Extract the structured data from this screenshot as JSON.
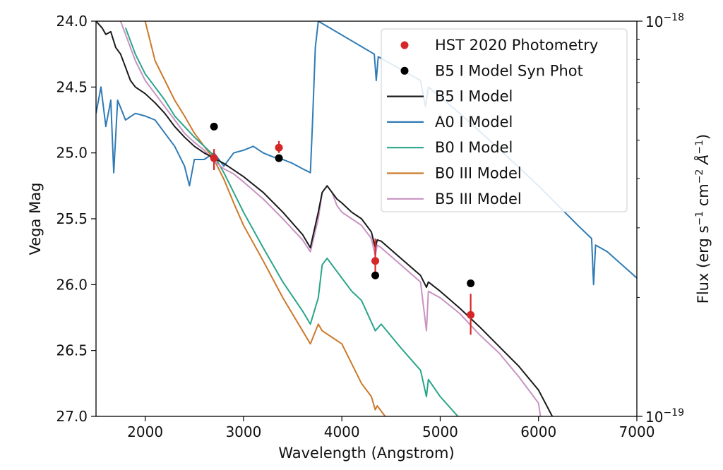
{
  "chart_data": {
    "type": "line",
    "xlabel": "Wavelength (Angstrom)",
    "ylabel": "Vega Mag",
    "y2label_html": "Flux (erg s⁻¹ cm⁻² Å⁻¹)",
    "y2label_parts": {
      "pre": "Flux (erg s",
      "s_exp": "−1",
      "mid": " cm",
      "cm_exp": "−2",
      "angstrom": " Å",
      "a_exp": "−1",
      "post": ")"
    },
    "xlim": [
      1500,
      7000
    ],
    "ylim": [
      27.0,
      24.0
    ],
    "y_inverted": true,
    "x_ticks": [
      2000,
      3000,
      4000,
      5000,
      6000,
      7000
    ],
    "x_tick_labels": [
      "2000",
      "3000",
      "4000",
      "5000",
      "6000",
      "7000"
    ],
    "y_ticks": [
      24.0,
      24.5,
      25.0,
      25.5,
      26.0,
      26.5,
      27.0
    ],
    "y_tick_labels": [
      "24.0",
      "24.5",
      "25.0",
      "25.5",
      "26.0",
      "26.5",
      "27.0"
    ],
    "y2_scale": "log",
    "y2_ticks": [
      {
        "mantissa": "10",
        "exponent": "−18",
        "value_mag": 24.0
      },
      {
        "mantissa": "10",
        "exponent": "−19",
        "value_mag": 27.0
      }
    ],
    "legend_position": "upper-right",
    "colors": {
      "hst": "#d62728",
      "synphot": "#000000",
      "b5i": "#1a1a1a",
      "a0i": "#2f7bb5",
      "b0i": "#2aa58a",
      "b0iii": "#cc7a2a",
      "b5iii": "#c993c2"
    },
    "series": [
      {
        "name": "B5 I Model",
        "kind": "line",
        "color_key": "b5i",
        "points": [
          [
            1500,
            24.0
          ],
          [
            1560,
            24.05
          ],
          [
            1600,
            24.1
          ],
          [
            1650,
            24.08
          ],
          [
            1700,
            24.2
          ],
          [
            1750,
            24.25
          ],
          [
            1800,
            24.35
          ],
          [
            1850,
            24.45
          ],
          [
            1900,
            24.5
          ],
          [
            2000,
            24.55
          ],
          [
            2100,
            24.62
          ],
          [
            2200,
            24.7
          ],
          [
            2300,
            24.8
          ],
          [
            2400,
            24.88
          ],
          [
            2500,
            24.95
          ],
          [
            2600,
            25.0
          ],
          [
            2700,
            25.04
          ],
          [
            2800,
            25.08
          ],
          [
            2900,
            25.13
          ],
          [
            3000,
            25.18
          ],
          [
            3200,
            25.3
          ],
          [
            3400,
            25.45
          ],
          [
            3600,
            25.62
          ],
          [
            3680,
            25.72
          ],
          [
            3700,
            25.65
          ],
          [
            3760,
            25.45
          ],
          [
            3800,
            25.3
          ],
          [
            3850,
            25.25
          ],
          [
            3900,
            25.3
          ],
          [
            3950,
            25.35
          ],
          [
            4000,
            25.38
          ],
          [
            4100,
            25.45
          ],
          [
            4200,
            25.5
          ],
          [
            4300,
            25.6
          ],
          [
            4340,
            25.72
          ],
          [
            4360,
            25.66
          ],
          [
            4400,
            25.67
          ],
          [
            4600,
            25.8
          ],
          [
            4800,
            25.93
          ],
          [
            4860,
            26.02
          ],
          [
            4880,
            25.98
          ],
          [
            5000,
            26.05
          ],
          [
            5200,
            26.18
          ],
          [
            5400,
            26.32
          ],
          [
            5600,
            26.47
          ],
          [
            5800,
            26.62
          ],
          [
            6000,
            26.8
          ],
          [
            6140,
            27.0
          ]
        ]
      },
      {
        "name": "A0 I Model",
        "kind": "line",
        "color_key": "a0i",
        "points": [
          [
            1500,
            24.7
          ],
          [
            1550,
            24.5
          ],
          [
            1600,
            24.8
          ],
          [
            1650,
            24.6
          ],
          [
            1680,
            25.15
          ],
          [
            1720,
            24.6
          ],
          [
            1800,
            24.75
          ],
          [
            1900,
            24.7
          ],
          [
            2000,
            24.72
          ],
          [
            2100,
            24.75
          ],
          [
            2200,
            24.85
          ],
          [
            2300,
            24.95
          ],
          [
            2400,
            25.1
          ],
          [
            2450,
            25.25
          ],
          [
            2500,
            25.05
          ],
          [
            2600,
            25.05
          ],
          [
            2700,
            25.0
          ],
          [
            2800,
            25.1
          ],
          [
            2900,
            25.0
          ],
          [
            3000,
            24.98
          ],
          [
            3100,
            24.95
          ],
          [
            3200,
            25.0
          ],
          [
            3300,
            25.03
          ],
          [
            3400,
            25.05
          ],
          [
            3500,
            25.08
          ],
          [
            3600,
            25.12
          ],
          [
            3680,
            25.15
          ],
          [
            3700,
            24.8
          ],
          [
            3730,
            24.2
          ],
          [
            3760,
            24.0
          ],
          [
            4330,
            24.25
          ],
          [
            4350,
            24.45
          ],
          [
            4370,
            24.27
          ],
          [
            4800,
            24.45
          ],
          [
            4850,
            24.65
          ],
          [
            4880,
            24.5
          ],
          [
            5200,
            24.7
          ],
          [
            5600,
            24.97
          ],
          [
            6000,
            25.25
          ],
          [
            6400,
            25.55
          ],
          [
            6540,
            25.65
          ],
          [
            6560,
            26.0
          ],
          [
            6580,
            25.7
          ],
          [
            6700,
            25.75
          ],
          [
            7000,
            25.95
          ]
        ]
      },
      {
        "name": "B0 I Model",
        "kind": "line",
        "color_key": "b0i",
        "points": [
          [
            1800,
            24.05
          ],
          [
            1900,
            24.25
          ],
          [
            2000,
            24.4
          ],
          [
            2100,
            24.5
          ],
          [
            2200,
            24.6
          ],
          [
            2300,
            24.72
          ],
          [
            2400,
            24.8
          ],
          [
            2500,
            24.88
          ],
          [
            2600,
            24.95
          ],
          [
            2700,
            25.02
          ],
          [
            2800,
            25.15
          ],
          [
            2900,
            25.3
          ],
          [
            3000,
            25.45
          ],
          [
            3200,
            25.72
          ],
          [
            3400,
            25.98
          ],
          [
            3600,
            26.2
          ],
          [
            3680,
            26.3
          ],
          [
            3760,
            26.1
          ],
          [
            3800,
            25.85
          ],
          [
            3850,
            25.8
          ],
          [
            3950,
            25.9
          ],
          [
            4000,
            25.95
          ],
          [
            4100,
            26.05
          ],
          [
            4200,
            26.12
          ],
          [
            4340,
            26.35
          ],
          [
            4400,
            26.3
          ],
          [
            4600,
            26.48
          ],
          [
            4800,
            26.65
          ],
          [
            4860,
            26.85
          ],
          [
            4880,
            26.72
          ],
          [
            5000,
            26.85
          ],
          [
            5180,
            27.0
          ]
        ]
      },
      {
        "name": "B0 III Model",
        "kind": "line",
        "color_key": "b0iii",
        "points": [
          [
            2000,
            24.0
          ],
          [
            2100,
            24.3
          ],
          [
            2200,
            24.45
          ],
          [
            2300,
            24.6
          ],
          [
            2400,
            24.72
          ],
          [
            2500,
            24.85
          ],
          [
            2600,
            24.95
          ],
          [
            2700,
            25.05
          ],
          [
            2800,
            25.2
          ],
          [
            2900,
            25.38
          ],
          [
            3000,
            25.55
          ],
          [
            3200,
            25.82
          ],
          [
            3400,
            26.1
          ],
          [
            3600,
            26.35
          ],
          [
            3680,
            26.45
          ],
          [
            3760,
            26.3
          ],
          [
            3800,
            26.35
          ],
          [
            3900,
            26.4
          ],
          [
            4000,
            26.45
          ],
          [
            4100,
            26.6
          ],
          [
            4200,
            26.75
          ],
          [
            4300,
            26.85
          ],
          [
            4340,
            26.95
          ],
          [
            4360,
            26.92
          ],
          [
            4440,
            27.0
          ]
        ]
      },
      {
        "name": "B5 III Model",
        "kind": "line",
        "color_key": "b5iii",
        "points": [
          [
            1750,
            24.0
          ],
          [
            1800,
            24.1
          ],
          [
            1900,
            24.3
          ],
          [
            2000,
            24.45
          ],
          [
            2100,
            24.55
          ],
          [
            2200,
            24.65
          ],
          [
            2300,
            24.75
          ],
          [
            2400,
            24.85
          ],
          [
            2500,
            24.92
          ],
          [
            2600,
            24.98
          ],
          [
            2700,
            25.06
          ],
          [
            2800,
            25.12
          ],
          [
            2900,
            25.16
          ],
          [
            3000,
            25.22
          ],
          [
            3200,
            25.35
          ],
          [
            3400,
            25.5
          ],
          [
            3600,
            25.66
          ],
          [
            3680,
            25.75
          ],
          [
            3760,
            25.5
          ],
          [
            3800,
            25.3
          ],
          [
            3850,
            25.25
          ],
          [
            3900,
            25.3
          ],
          [
            3950,
            25.4
          ],
          [
            4000,
            25.45
          ],
          [
            4100,
            25.5
          ],
          [
            4200,
            25.55
          ],
          [
            4300,
            25.65
          ],
          [
            4340,
            25.78
          ],
          [
            4360,
            25.7
          ],
          [
            4400,
            25.72
          ],
          [
            4600,
            25.85
          ],
          [
            4800,
            25.98
          ],
          [
            4860,
            26.35
          ],
          [
            4880,
            26.05
          ],
          [
            5000,
            26.1
          ],
          [
            5200,
            26.22
          ],
          [
            5400,
            26.38
          ],
          [
            5600,
            26.52
          ],
          [
            5800,
            26.7
          ],
          [
            6000,
            26.9
          ],
          [
            6020,
            27.0
          ]
        ]
      },
      {
        "name": "HST 2020 Photometry",
        "kind": "errorbar",
        "color_key": "hst",
        "points": [
          {
            "x": 2700,
            "y": 25.04,
            "err": [
              24.97,
              25.13
            ]
          },
          {
            "x": 3360,
            "y": 24.96,
            "err": [
              24.91,
              25.0
            ]
          },
          {
            "x": 4340,
            "y": 25.82,
            "err": [
              25.65,
              25.95
            ]
          },
          {
            "x": 5310,
            "y": 26.23,
            "err": [
              26.07,
              26.38
            ]
          }
        ]
      },
      {
        "name": "B5 I Model Syn Phot",
        "kind": "scatter",
        "color_key": "synphot",
        "points": [
          {
            "x": 2700,
            "y": 24.8
          },
          {
            "x": 3360,
            "y": 25.04
          },
          {
            "x": 4340,
            "y": 25.93
          },
          {
            "x": 5310,
            "y": 25.99
          }
        ]
      }
    ],
    "legend": [
      {
        "label": "HST 2020 Photometry",
        "marker": "dot",
        "color_key": "hst"
      },
      {
        "label": "B5 I Model Syn Phot",
        "marker": "dot",
        "color_key": "synphot"
      },
      {
        "label": "B5 I Model",
        "marker": "line",
        "color_key": "b5i"
      },
      {
        "label": "A0 I Model",
        "marker": "line",
        "color_key": "a0i"
      },
      {
        "label": "B0 I Model",
        "marker": "line",
        "color_key": "b0i"
      },
      {
        "label": "B0 III Model",
        "marker": "line",
        "color_key": "b0iii"
      },
      {
        "label": "B5 III Model",
        "marker": "line",
        "color_key": "b5iii"
      }
    ]
  }
}
